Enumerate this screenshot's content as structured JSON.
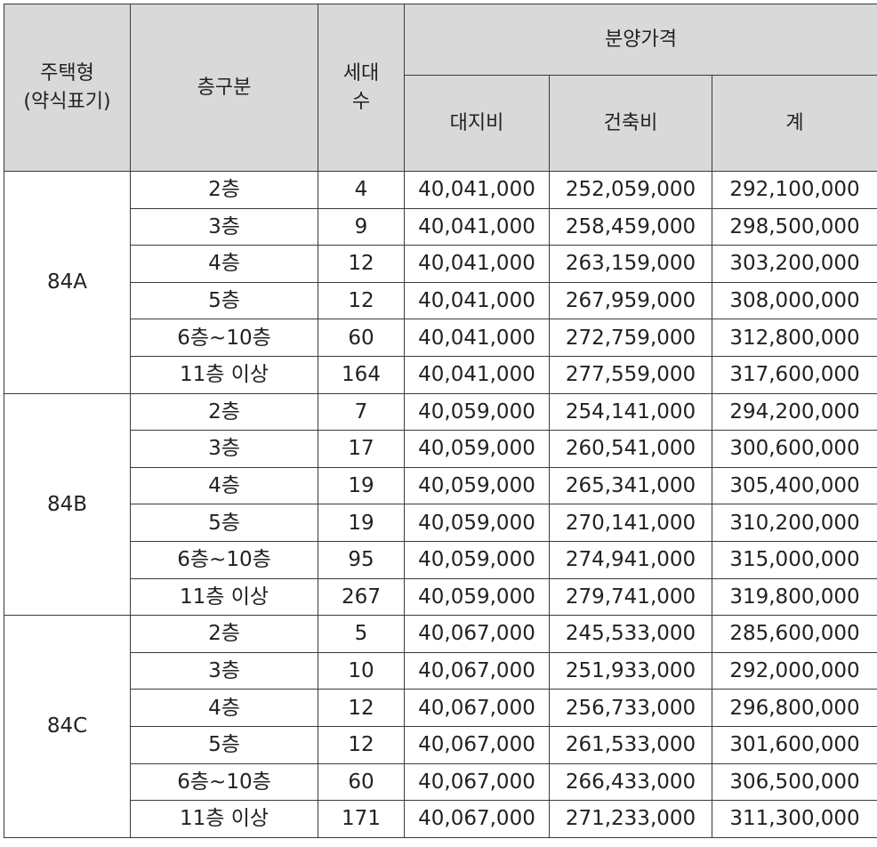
{
  "header": {
    "housing_type_line1": "주택형",
    "housing_type_line2": "(약식표기)",
    "floor_group": "층구분",
    "units_line1": "세대",
    "units_line2": "수",
    "sale_price": "분양가격",
    "land_cost": "대지비",
    "build_cost": "건축비",
    "total": "계"
  },
  "groups": [
    {
      "type": "84A",
      "rows": [
        {
          "floor": "2층",
          "units": "4",
          "land": "40,041,000",
          "build": "252,059,000",
          "total": "292,100,000"
        },
        {
          "floor": "3층",
          "units": "9",
          "land": "40,041,000",
          "build": "258,459,000",
          "total": "298,500,000"
        },
        {
          "floor": "4층",
          "units": "12",
          "land": "40,041,000",
          "build": "263,159,000",
          "total": "303,200,000"
        },
        {
          "floor": "5층",
          "units": "12",
          "land": "40,041,000",
          "build": "267,959,000",
          "total": "308,000,000"
        },
        {
          "floor": "6층~10층",
          "units": "60",
          "land": "40,041,000",
          "build": "272,759,000",
          "total": "312,800,000"
        },
        {
          "floor": "11층 이상",
          "units": "164",
          "land": "40,041,000",
          "build": "277,559,000",
          "total": "317,600,000"
        }
      ]
    },
    {
      "type": "84B",
      "rows": [
        {
          "floor": "2층",
          "units": "7",
          "land": "40,059,000",
          "build": "254,141,000",
          "total": "294,200,000"
        },
        {
          "floor": "3층",
          "units": "17",
          "land": "40,059,000",
          "build": "260,541,000",
          "total": "300,600,000"
        },
        {
          "floor": "4층",
          "units": "19",
          "land": "40,059,000",
          "build": "265,341,000",
          "total": "305,400,000"
        },
        {
          "floor": "5층",
          "units": "19",
          "land": "40,059,000",
          "build": "270,141,000",
          "total": "310,200,000"
        },
        {
          "floor": "6층~10층",
          "units": "95",
          "land": "40,059,000",
          "build": "274,941,000",
          "total": "315,000,000"
        },
        {
          "floor": "11층 이상",
          "units": "267",
          "land": "40,059,000",
          "build": "279,741,000",
          "total": "319,800,000"
        }
      ]
    },
    {
      "type": "84C",
      "rows": [
        {
          "floor": "2층",
          "units": "5",
          "land": "40,067,000",
          "build": "245,533,000",
          "total": "285,600,000"
        },
        {
          "floor": "3층",
          "units": "10",
          "land": "40,067,000",
          "build": "251,933,000",
          "total": "292,000,000"
        },
        {
          "floor": "4층",
          "units": "12",
          "land": "40,067,000",
          "build": "256,733,000",
          "total": "296,800,000"
        },
        {
          "floor": "5층",
          "units": "12",
          "land": "40,067,000",
          "build": "261,533,000",
          "total": "301,600,000"
        },
        {
          "floor": "6층~10층",
          "units": "60",
          "land": "40,067,000",
          "build": "266,433,000",
          "total": "306,500,000"
        },
        {
          "floor": "11층 이상",
          "units": "171",
          "land": "40,067,000",
          "build": "271,233,000",
          "total": "311,300,000"
        }
      ]
    }
  ]
}
